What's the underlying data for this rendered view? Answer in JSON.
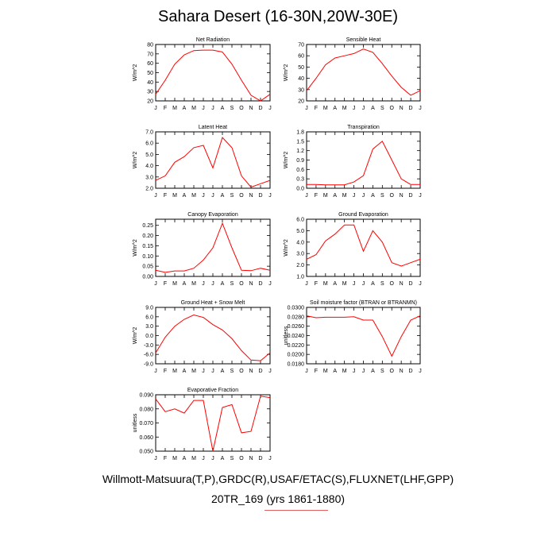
{
  "title": "Sahara Desert (16-30N,20W-30E)",
  "footer": {
    "line1": "Willmott-Matsuura(T,P),GRDC(R),USAF/ETAC(S),FLUXNET(LHF,GPP)",
    "line2": "20TR_169 (yrs 1861-1880)"
  },
  "colors": {
    "series": "#ff0000",
    "axis": "#000000"
  },
  "chart_data": [
    {
      "type": "line",
      "title": "Net Radiation",
      "ylabel": "W/m^2",
      "categories": [
        "J",
        "F",
        "M",
        "A",
        "M",
        "J",
        "J",
        "A",
        "S",
        "O",
        "N",
        "D",
        "J"
      ],
      "values": [
        27,
        42,
        59,
        69,
        73.5,
        74,
        74,
        72,
        59,
        42,
        26,
        20,
        27
      ],
      "ylim": [
        20,
        80
      ],
      "yticks": [
        "20",
        "30",
        "40",
        "50",
        "60",
        "70",
        "80"
      ],
      "ytick_values": [
        20,
        30,
        40,
        50,
        60,
        70,
        80
      ]
    },
    {
      "type": "line",
      "title": "Sensible Heat",
      "ylabel": "W/m^2",
      "categories": [
        "J",
        "F",
        "M",
        "A",
        "M",
        "J",
        "J",
        "A",
        "S",
        "O",
        "N",
        "D",
        "J"
      ],
      "values": [
        29,
        40,
        52,
        58,
        60,
        62,
        66,
        63,
        53,
        42,
        32,
        25,
        29
      ],
      "ylim": [
        20,
        70
      ],
      "yticks": [
        "20",
        "30",
        "40",
        "50",
        "60",
        "70"
      ],
      "ytick_values": [
        20,
        30,
        40,
        50,
        60,
        70
      ]
    },
    {
      "type": "line",
      "title": "Latent Heat",
      "ylabel": "W/m^2",
      "categories": [
        "J",
        "F",
        "M",
        "A",
        "M",
        "J",
        "J",
        "A",
        "S",
        "O",
        "N",
        "D",
        "J"
      ],
      "values": [
        2.7,
        3.1,
        4.3,
        4.8,
        5.6,
        5.8,
        3.8,
        6.5,
        5.6,
        3.1,
        2.1,
        2.4,
        2.7
      ],
      "ylim": [
        2.0,
        7.0
      ],
      "yticks": [
        "2.0",
        "3.0",
        "4.0",
        "5.0",
        "6.0",
        "7.0"
      ],
      "ytick_values": [
        2,
        3,
        4,
        5,
        6,
        7
      ]
    },
    {
      "type": "line",
      "title": "Transpiration",
      "ylabel": "W/m^2",
      "categories": [
        "J",
        "F",
        "M",
        "A",
        "M",
        "J",
        "J",
        "A",
        "S",
        "O",
        "N",
        "D",
        "J"
      ],
      "values": [
        0.12,
        0.12,
        0.11,
        0.11,
        0.11,
        0.2,
        0.4,
        1.25,
        1.5,
        0.9,
        0.3,
        0.12,
        0.12
      ],
      "ylim": [
        0.0,
        1.8
      ],
      "yticks": [
        "0.0",
        "0.3",
        "0.6",
        "0.9",
        "1.2",
        "1.5",
        "1.8"
      ],
      "ytick_values": [
        0,
        0.3,
        0.6,
        0.9,
        1.2,
        1.5,
        1.8
      ]
    },
    {
      "type": "line",
      "title": "Canopy Evaporation",
      "ylabel": "W/m^2",
      "categories": [
        "J",
        "F",
        "M",
        "A",
        "M",
        "J",
        "J",
        "A",
        "S",
        "O",
        "N",
        "D",
        "J"
      ],
      "values": [
        0.03,
        0.02,
        0.027,
        0.027,
        0.04,
        0.08,
        0.14,
        0.26,
        0.14,
        0.03,
        0.028,
        0.04,
        0.03
      ],
      "ylim": [
        0.0,
        0.28
      ],
      "yticks": [
        "0.00",
        "0.05",
        "0.10",
        "0.15",
        "0.20",
        "0.25"
      ],
      "ytick_values": [
        0,
        0.05,
        0.1,
        0.15,
        0.2,
        0.25
      ]
    },
    {
      "type": "line",
      "title": "Ground Evaporation",
      "ylabel": "W/m^2",
      "categories": [
        "J",
        "F",
        "M",
        "A",
        "M",
        "J",
        "J",
        "A",
        "S",
        "O",
        "N",
        "D",
        "J"
      ],
      "values": [
        2.5,
        2.9,
        4.1,
        4.7,
        5.5,
        5.5,
        3.2,
        5.0,
        4.0,
        2.2,
        1.9,
        2.2,
        2.5
      ],
      "ylim": [
        1.0,
        6.0
      ],
      "yticks": [
        "1.0",
        "2.0",
        "3.0",
        "4.0",
        "5.0",
        "6.0"
      ],
      "ytick_values": [
        1,
        2,
        3,
        4,
        5,
        6
      ]
    },
    {
      "type": "line",
      "title": "Ground Heat + Snow Melt",
      "ylabel": "W/m^2",
      "categories": [
        "J",
        "F",
        "M",
        "A",
        "M",
        "J",
        "J",
        "A",
        "S",
        "O",
        "N",
        "D",
        "J"
      ],
      "values": [
        -5.5,
        -0.5,
        3.0,
        5.2,
        6.6,
        5.8,
        3.5,
        1.8,
        -1.0,
        -4.8,
        -7.8,
        -8.0,
        -5.5
      ],
      "ylim": [
        -9.0,
        9.0
      ],
      "yticks": [
        "-9.0",
        "-6.0",
        "-3.0",
        "0.0",
        "3.0",
        "6.0",
        "9.0"
      ],
      "ytick_values": [
        -9,
        -6,
        -3,
        0,
        3,
        6,
        9
      ]
    },
    {
      "type": "line",
      "title": "Soil moisture factor (BTRAN or BTRANMN)",
      "ylabel": "unitless",
      "categories": [
        "J",
        "F",
        "M",
        "A",
        "M",
        "J",
        "J",
        "A",
        "S",
        "O",
        "N",
        "D",
        "J"
      ],
      "values": [
        0.0282,
        0.0278,
        0.0279,
        0.0279,
        0.0279,
        0.028,
        0.0273,
        0.0273,
        0.0238,
        0.0196,
        0.0238,
        0.0273,
        0.0282
      ],
      "ylim": [
        0.018,
        0.03
      ],
      "yticks": [
        "0.0180",
        "0.0200",
        "0.0220",
        "0.0240",
        "0.0260",
        "0.0280",
        "0.0300"
      ],
      "ytick_values": [
        0.018,
        0.02,
        0.022,
        0.024,
        0.026,
        0.028,
        0.03
      ]
    },
    {
      "type": "line",
      "title": "Evaporative Fraction",
      "ylabel": "unitless",
      "categories": [
        "J",
        "F",
        "M",
        "A",
        "M",
        "J",
        "J",
        "A",
        "S",
        "O",
        "N",
        "D",
        "J"
      ],
      "values": [
        0.087,
        0.078,
        0.08,
        0.077,
        0.086,
        0.086,
        0.05,
        0.081,
        0.083,
        0.063,
        0.064,
        0.089,
        0.088
      ],
      "ylim": [
        0.05,
        0.09
      ],
      "yticks": [
        "0.050",
        "0.060",
        "0.070",
        "0.080",
        "0.090"
      ],
      "ytick_values": [
        0.05,
        0.06,
        0.07,
        0.08,
        0.09
      ]
    }
  ]
}
